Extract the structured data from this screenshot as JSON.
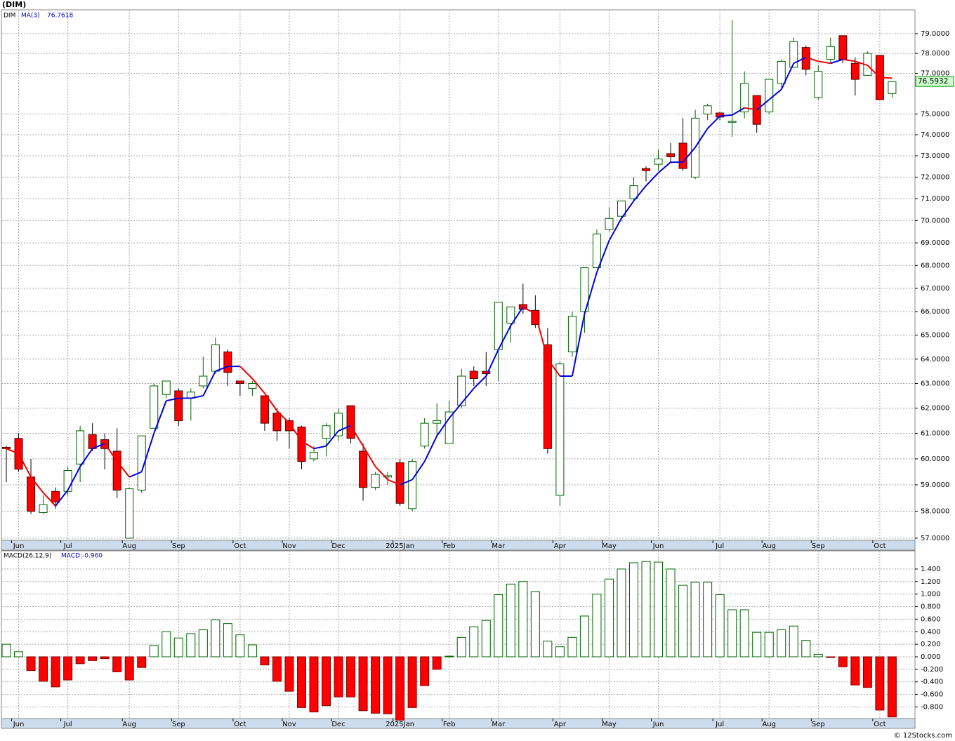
{
  "chart_data": [
    {
      "type": "candlestick",
      "title": "(DIM)",
      "ticker": "DIM",
      "ma_name": "MA(3)",
      "ma_last": 76.7618,
      "last_price": 76.5932,
      "log_scale": true,
      "grid": true,
      "up_color": "#006400",
      "down_color": "#ff0000",
      "ma_up_color": "#0000dd",
      "ma_down_color": "#ee0000",
      "ylim": [
        56.92,
        80.23
      ],
      "yticks": [
        {
          "value": 57,
          "label": "57.0000"
        },
        {
          "value": 58,
          "label": "58.0000"
        },
        {
          "value": 59,
          "label": "59.0000"
        },
        {
          "value": 60,
          "label": "60.0000"
        },
        {
          "value": 61,
          "label": "61.0000"
        },
        {
          "value": 62,
          "label": "62.0000"
        },
        {
          "value": 63,
          "label": "63.0000"
        },
        {
          "value": 64,
          "label": "64.0000"
        },
        {
          "value": 65,
          "label": "65.0000"
        },
        {
          "value": 66,
          "label": "66.0000"
        },
        {
          "value": 67,
          "label": "67.0000"
        },
        {
          "value": 68,
          "label": "68.0000"
        },
        {
          "value": 69,
          "label": "69.0000"
        },
        {
          "value": 70,
          "label": "70.0000"
        },
        {
          "value": 71,
          "label": "71.0000"
        },
        {
          "value": 72,
          "label": "72.0000"
        },
        {
          "value": 73,
          "label": "73.0000"
        },
        {
          "value": 74,
          "label": "74.0000"
        },
        {
          "value": 75,
          "label": "75.0000"
        },
        {
          "value": 77,
          "label": "77.0000"
        },
        {
          "value": 78,
          "label": "78.0000"
        },
        {
          "value": 79,
          "label": "79.0000"
        }
      ],
      "xlim": [
        -0.4,
        73.86
      ],
      "xticks": [
        {
          "value": 1,
          "label": "Jun"
        },
        {
          "value": 5,
          "label": "Jul"
        },
        {
          "value": 10,
          "label": "Aug"
        },
        {
          "value": 14,
          "label": "Sep"
        },
        {
          "value": 19,
          "label": "Oct"
        },
        {
          "value": 23,
          "label": "Nov"
        },
        {
          "value": 27,
          "label": "Dec"
        },
        {
          "value": 32,
          "label": "2025Jan"
        },
        {
          "value": 36,
          "label": "Feb"
        },
        {
          "value": 40,
          "label": "Mar"
        },
        {
          "value": 45,
          "label": "Apr"
        },
        {
          "value": 49,
          "label": "May"
        },
        {
          "value": 53,
          "label": "Jun"
        },
        {
          "value": 58,
          "label": "Jul"
        },
        {
          "value": 62,
          "label": "Aug"
        },
        {
          "value": 66,
          "label": "Sep"
        },
        {
          "value": 71,
          "label": "Oct"
        }
      ],
      "open": [
        60.45,
        60.8,
        59.3,
        57.95,
        58.75,
        58.75,
        59.8,
        60.95,
        60.75,
        60.3,
        57.0,
        58.8,
        61.2,
        62.55,
        62.7,
        62.4,
        62.9,
        63.5,
        64.3,
        63.1,
        62.8,
        62.5,
        61.8,
        61.5,
        61.25,
        60.0,
        60.8,
        60.9,
        62.1,
        60.3,
        58.9,
        59.3,
        59.85,
        58.1,
        60.5,
        61.4,
        60.6,
        62.1,
        63.5,
        63.5,
        64.4,
        65.5,
        66.3,
        66.05,
        64.6,
        58.6,
        64.3,
        66.0,
        67.9,
        69.6,
        70.2,
        71.0,
        72.4,
        72.6,
        73.1,
        73.6,
        72.0,
        75.0,
        75.05,
        74.6,
        75.1,
        75.9,
        75.1,
        76.5,
        77.3,
        78.3,
        75.8,
        77.7,
        78.9,
        77.5,
        76.9,
        77.9,
        76.0
      ],
      "high": [
        60.5,
        61.0,
        60.0,
        58.6,
        58.9,
        59.7,
        61.3,
        61.4,
        61.0,
        61.2,
        58.9,
        60.9,
        63.0,
        63.1,
        62.8,
        62.8,
        64.1,
        64.9,
        64.4,
        63.1,
        63.1,
        62.5,
        62.0,
        61.6,
        61.3,
        60.5,
        61.4,
        62.0,
        62.1,
        60.6,
        59.5,
        59.5,
        60.0,
        60.0,
        61.6,
        62.2,
        62.3,
        63.6,
        63.7,
        64.3,
        66.4,
        66.2,
        67.2,
        66.7,
        65.3,
        63.9,
        66.0,
        67.9,
        69.6,
        70.6,
        70.9,
        72.0,
        72.5,
        73.3,
        73.6,
        74.8,
        75.2,
        75.5,
        75.1,
        79.7,
        77.1,
        75.9,
        76.7,
        77.7,
        78.8,
        78.4,
        77.4,
        78.8,
        78.9,
        77.8,
        78.1,
        77.9,
        76.6
      ],
      "low": [
        59.1,
        59.5,
        57.9,
        57.9,
        58.1,
        58.6,
        59.1,
        60.3,
        59.6,
        58.5,
        57.0,
        58.7,
        61.2,
        62.4,
        61.3,
        61.5,
        62.8,
        63.4,
        62.9,
        62.5,
        62.5,
        61.1,
        60.7,
        60.4,
        59.6,
        59.9,
        60.1,
        60.7,
        60.6,
        58.4,
        58.8,
        59.0,
        58.2,
        58.0,
        60.4,
        60.9,
        60.6,
        62.0,
        62.9,
        62.9,
        63.1,
        64.7,
        65.9,
        65.3,
        60.2,
        58.2,
        64.1,
        65.1,
        67.9,
        69.5,
        70.0,
        70.9,
        71.8,
        72.3,
        72.7,
        72.3,
        71.9,
        74.7,
        74.7,
        73.9,
        74.8,
        74.1,
        75.0,
        76.3,
        77.3,
        76.9,
        75.7,
        77.5,
        77.5,
        75.9,
        76.9,
        75.7,
        75.8
      ],
      "close": [
        60.4,
        59.6,
        58.0,
        58.25,
        58.35,
        59.55,
        61.1,
        60.4,
        60.4,
        58.8,
        58.85,
        60.9,
        62.9,
        63.1,
        61.5,
        62.65,
        63.3,
        64.6,
        63.45,
        63.0,
        63.0,
        61.4,
        61.1,
        61.1,
        59.9,
        60.25,
        61.3,
        61.8,
        60.8,
        58.9,
        59.4,
        59.35,
        58.3,
        59.9,
        61.4,
        61.5,
        61.85,
        63.3,
        63.2,
        63.4,
        66.4,
        66.2,
        66.1,
        65.45,
        60.4,
        63.8,
        65.8,
        67.9,
        69.4,
        70.1,
        70.9,
        71.6,
        72.3,
        72.85,
        72.95,
        72.4,
        74.8,
        75.4,
        74.85,
        74.65,
        76.5,
        74.5,
        76.7,
        77.6,
        78.6,
        77.2,
        77.1,
        78.35,
        77.7,
        76.7,
        78.0,
        75.7,
        76.59
      ],
      "ma": [
        60.4,
        60.2,
        59.3,
        58.7,
        58.2,
        58.8,
        59.7,
        60.4,
        60.6,
        59.9,
        59.3,
        59.5,
        61.0,
        62.3,
        62.4,
        62.4,
        62.5,
        63.5,
        63.7,
        63.7,
        63.2,
        62.6,
        61.9,
        61.4,
        60.7,
        60.4,
        60.5,
        61.1,
        61.3,
        60.5,
        59.7,
        59.2,
        59.0,
        59.2,
        59.9,
        60.9,
        61.6,
        62.2,
        62.8,
        63.3,
        64.4,
        65.4,
        66.2,
        65.9,
        64.0,
        63.3,
        63.3,
        65.9,
        67.7,
        69.1,
        70.1,
        70.9,
        71.6,
        72.2,
        72.7,
        72.7,
        73.4,
        74.3,
        74.9,
        74.95,
        75.3,
        75.2,
        75.7,
        76.2,
        77.5,
        77.8,
        77.6,
        77.5,
        77.7,
        77.6,
        77.4,
        76.8,
        76.76
      ]
    },
    {
      "type": "bar",
      "title": "MACD(26,12,9)",
      "value_title": "MACD:-0.960",
      "grid": true,
      "up_color": "#006400",
      "down_color": "#ff0000",
      "ylim": [
        -0.985,
        1.69
      ],
      "yticks": [
        {
          "value": -0.8,
          "label": "-0.800"
        },
        {
          "value": -0.6,
          "label": "-0.600"
        },
        {
          "value": -0.4,
          "label": "-0.400"
        },
        {
          "value": -0.2,
          "label": "-0.200"
        },
        {
          "value": 0,
          "label": "0.000"
        },
        {
          "value": 0.2,
          "label": "0.200"
        },
        {
          "value": 0.4,
          "label": "0.400"
        },
        {
          "value": 0.6,
          "label": "0.600"
        },
        {
          "value": 0.8,
          "label": "0.800"
        },
        {
          "value": 1.0,
          "label": "1.000"
        },
        {
          "value": 1.2,
          "label": "1.200"
        },
        {
          "value": 1.4,
          "label": "1.400"
        }
      ],
      "xlim": [
        -0.4,
        73.86
      ],
      "xticks": [
        {
          "value": 1,
          "label": "Jun"
        },
        {
          "value": 5,
          "label": "Jul"
        },
        {
          "value": 10,
          "label": "Aug"
        },
        {
          "value": 14,
          "label": "Sep"
        },
        {
          "value": 19,
          "label": "Oct"
        },
        {
          "value": 23,
          "label": "Nov"
        },
        {
          "value": 27,
          "label": "Dec"
        },
        {
          "value": 32,
          "label": "2025Jan"
        },
        {
          "value": 36,
          "label": "Feb"
        },
        {
          "value": 40,
          "label": "Mar"
        },
        {
          "value": 45,
          "label": "Apr"
        },
        {
          "value": 49,
          "label": "May"
        },
        {
          "value": 53,
          "label": "Jun"
        },
        {
          "value": 58,
          "label": "Jul"
        },
        {
          "value": 62,
          "label": "Aug"
        },
        {
          "value": 66,
          "label": "Sep"
        },
        {
          "value": 71,
          "label": "Oct"
        }
      ],
      "values": [
        0.2,
        0.08,
        -0.22,
        -0.39,
        -0.48,
        -0.37,
        -0.11,
        -0.06,
        -0.03,
        -0.24,
        -0.37,
        -0.17,
        0.18,
        0.4,
        0.3,
        0.37,
        0.43,
        0.59,
        0.53,
        0.35,
        0.19,
        -0.13,
        -0.39,
        -0.55,
        -0.81,
        -0.88,
        -0.78,
        -0.64,
        -0.64,
        -0.86,
        -0.9,
        -0.91,
        -1.01,
        -0.81,
        -0.46,
        -0.2,
        0.01,
        0.31,
        0.48,
        0.58,
        0.99,
        1.16,
        1.2,
        1.04,
        0.25,
        0.16,
        0.31,
        0.65,
        1.0,
        1.24,
        1.4,
        1.5,
        1.52,
        1.51,
        1.4,
        1.14,
        1.19,
        1.19,
        0.99,
        0.75,
        0.75,
        0.39,
        0.39,
        0.43,
        0.49,
        0.26,
        0.04,
        -0.01,
        -0.16,
        -0.45,
        -0.49,
        -0.85,
        -0.96
      ]
    }
  ],
  "footer": "© 12Stocks.com"
}
